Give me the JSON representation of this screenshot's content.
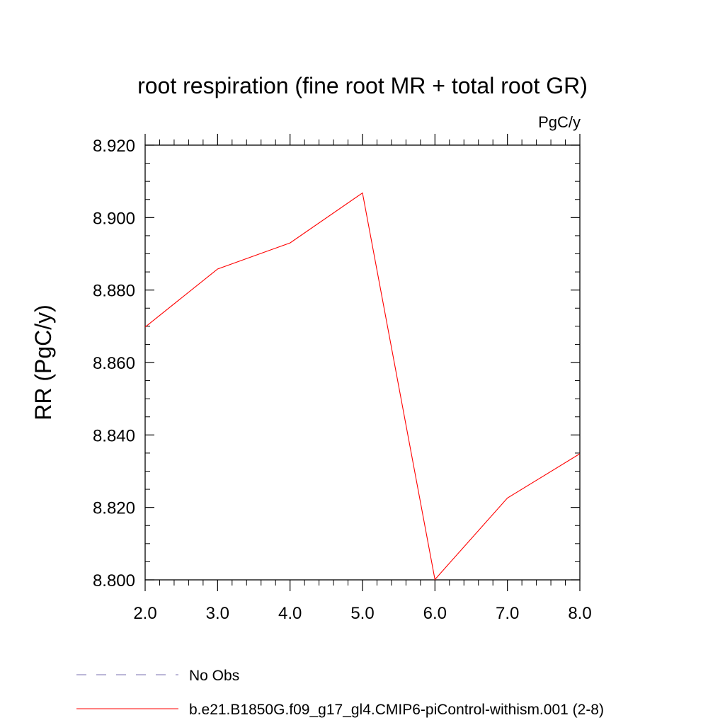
{
  "chart_data": {
    "type": "line",
    "title": "root respiration (fine root MR + total root GR)",
    "units": "PgC/y",
    "ylabel": "RR  (PgC/y)",
    "xlabel": "",
    "xlim": [
      2.0,
      8.0
    ],
    "ylim": [
      8.8,
      8.92
    ],
    "x_ticks": [
      "2.0",
      "3.0",
      "4.0",
      "5.0",
      "6.0",
      "7.0",
      "8.0"
    ],
    "y_ticks": [
      "8.800",
      "8.820",
      "8.840",
      "8.860",
      "8.880",
      "8.900",
      "8.920"
    ],
    "grid": false,
    "legend_position": "bottom",
    "series": [
      {
        "name": "b.e21.B1850G.f09_g17_gl4.CMIP6-piControl-withism.001 (2-8)",
        "color": "#ff0000",
        "style": "solid",
        "x": [
          2.0,
          3.0,
          4.0,
          5.0,
          6.0,
          7.0,
          8.0
        ],
        "values": [
          8.8698,
          8.8858,
          8.893,
          8.9068,
          8.8001,
          8.8226,
          8.8348
        ]
      }
    ],
    "legend": [
      {
        "label": "No Obs",
        "color": "#7a6fb0",
        "style": "dashed"
      },
      {
        "label": "b.e21.B1850G.f09_g17_gl4.CMIP6-piControl-withism.001 (2-8)",
        "color": "#ff0000",
        "style": "solid"
      }
    ]
  }
}
